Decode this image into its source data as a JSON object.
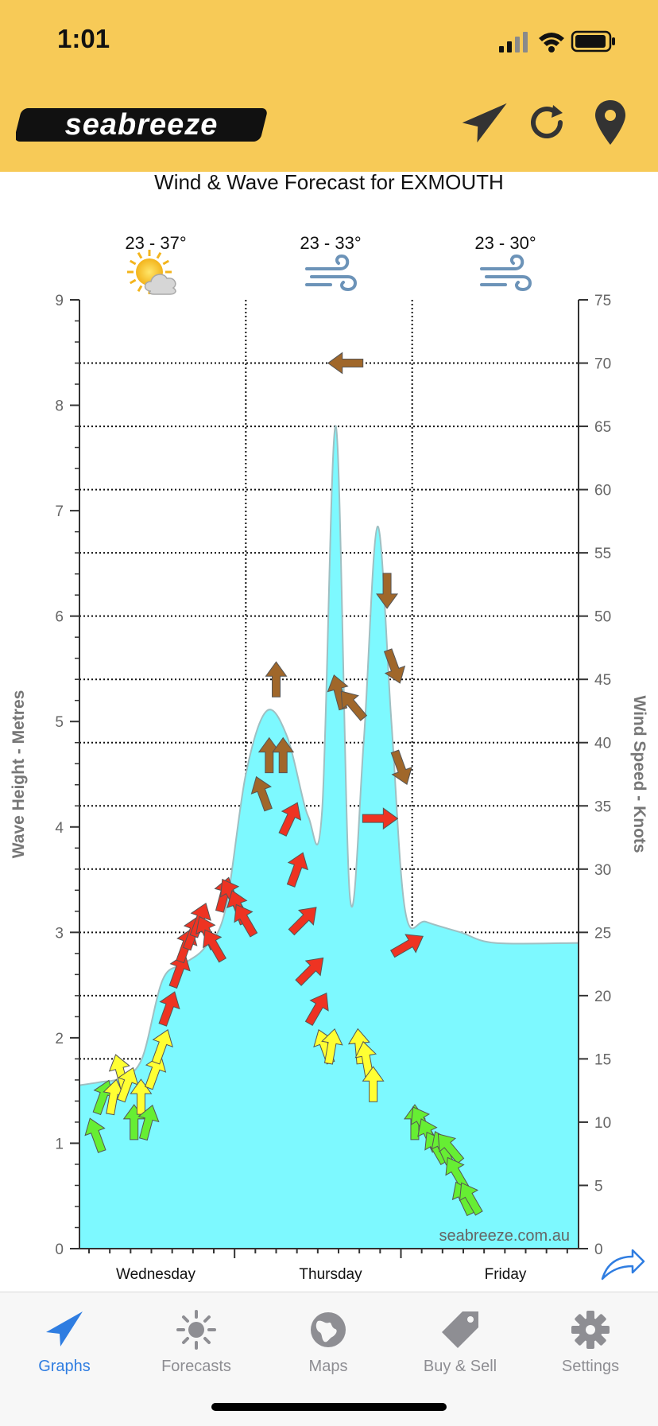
{
  "status_bar": {
    "time": "1:01"
  },
  "header": {
    "logo_text": "seabreeze",
    "background": "#F7CA57"
  },
  "title": "Wind & Wave Forecast for EXMOUTH",
  "watermark": "seabreeze.com.au",
  "days": [
    {
      "name": "Wednesday",
      "temp": "23 - 37°",
      "weather_icon": "sun-cloud-icon"
    },
    {
      "name": "Thursday",
      "temp": "23 - 33°",
      "weather_icon": "wind-icon"
    },
    {
      "name": "Friday",
      "temp": "23 - 30°",
      "weather_icon": "wind-icon"
    }
  ],
  "chart_data": {
    "type": "area",
    "title": "Wind & Wave Forecast for EXMOUTH",
    "xlabel": "",
    "ylabel": "Wave Height - Metres",
    "y2label": "Wind Speed - Knots",
    "ylim": [
      0,
      9
    ],
    "y2lim": [
      0,
      75
    ],
    "left_ticks": [
      "0",
      "1",
      "2",
      "3",
      "4",
      "5",
      "6",
      "7",
      "8",
      "9"
    ],
    "right_ticks": [
      "0",
      "5",
      "10",
      "15",
      "20",
      "25",
      "30",
      "35",
      "40",
      "45",
      "50",
      "55",
      "60",
      "65",
      "70",
      "75"
    ],
    "grid": "dotted horizontal at wind-speed intervals of 5 knots",
    "x_range_hours": [
      0,
      72
    ],
    "series": [
      {
        "name": "Wave Height",
        "color": "#7DF9FF",
        "points": [
          [
            0,
            1.55
          ],
          [
            3,
            1.58
          ],
          [
            6,
            1.62
          ],
          [
            9,
            1.8
          ],
          [
            12,
            2.55
          ],
          [
            15,
            2.7
          ],
          [
            18,
            2.85
          ],
          [
            21,
            3.2
          ],
          [
            24,
            4.5
          ],
          [
            27,
            5.1
          ],
          [
            30,
            4.85
          ],
          [
            33,
            4.1
          ],
          [
            35,
            4.15
          ],
          [
            37,
            7.8
          ],
          [
            39,
            3.35
          ],
          [
            41,
            4.8
          ],
          [
            43,
            6.85
          ],
          [
            45,
            5.0
          ],
          [
            47,
            3.2
          ],
          [
            50,
            3.1
          ],
          [
            55,
            3.0
          ],
          [
            60,
            2.9
          ],
          [
            72,
            2.9
          ]
        ]
      }
    ],
    "wind_arrows": [
      {
        "t": 1.0,
        "knots": 9,
        "dir": 340,
        "color": "#66EE33"
      },
      {
        "t": 2.0,
        "knots": 12,
        "dir": 20,
        "color": "#66EE33"
      },
      {
        "t": 3.5,
        "knots": 12,
        "dir": 10,
        "color": "#FFFF33"
      },
      {
        "t": 4.5,
        "knots": 14,
        "dir": 345,
        "color": "#FFFF33"
      },
      {
        "t": 5.5,
        "knots": 13,
        "dir": 20,
        "color": "#FFFF33"
      },
      {
        "t": 6.5,
        "knots": 10,
        "dir": 0,
        "color": "#66EE33"
      },
      {
        "t": 7.5,
        "knots": 12,
        "dir": 0,
        "color": "#FFFF33"
      },
      {
        "t": 8.5,
        "knots": 10,
        "dir": 15,
        "color": "#66EE33"
      },
      {
        "t": 9.5,
        "knots": 14,
        "dir": 20,
        "color": "#FFFF33"
      },
      {
        "t": 10.5,
        "knots": 16,
        "dir": 20,
        "color": "#FFFF33"
      },
      {
        "t": 11.5,
        "knots": 19,
        "dir": 20,
        "color": "#EE3322"
      },
      {
        "t": 13,
        "knots": 22,
        "dir": 20,
        "color": "#EE3322"
      },
      {
        "t": 14,
        "knots": 24,
        "dir": 20,
        "color": "#EE3322"
      },
      {
        "t": 15,
        "knots": 25,
        "dir": 20,
        "color": "#EE3322"
      },
      {
        "t": 16,
        "knots": 26,
        "dir": 20,
        "color": "#EE3322"
      },
      {
        "t": 17,
        "knots": 25,
        "dir": 335,
        "color": "#EE3322"
      },
      {
        "t": 18,
        "knots": 24,
        "dir": 330,
        "color": "#EE3322"
      },
      {
        "t": 19.5,
        "knots": 28,
        "dir": 15,
        "color": "#EE3322"
      },
      {
        "t": 20.5,
        "knots": 28,
        "dir": 330,
        "color": "#EE3322"
      },
      {
        "t": 21.5,
        "knots": 27,
        "dir": 340,
        "color": "#EE3322"
      },
      {
        "t": 22.5,
        "knots": 26,
        "dir": 330,
        "color": "#EE3322"
      },
      {
        "t": 25,
        "knots": 36,
        "dir": 340,
        "color": "#A0672A"
      },
      {
        "t": 26,
        "knots": 39,
        "dir": 0,
        "color": "#A0672A"
      },
      {
        "t": 27,
        "knots": 45,
        "dir": 0,
        "color": "#A0672A"
      },
      {
        "t": 28,
        "knots": 39,
        "dir": 0,
        "color": "#A0672A"
      },
      {
        "t": 29,
        "knots": 34,
        "dir": 25,
        "color": "#EE3322"
      },
      {
        "t": 30,
        "knots": 30,
        "dir": 20,
        "color": "#EE3322"
      },
      {
        "t": 31,
        "knots": 26,
        "dir": 45,
        "color": "#EE3322"
      },
      {
        "t": 32,
        "knots": 22,
        "dir": 45,
        "color": "#EE3322"
      },
      {
        "t": 33,
        "knots": 19,
        "dir": 30,
        "color": "#EE3322"
      },
      {
        "t": 34,
        "knots": 16,
        "dir": 340,
        "color": "#FFFF33"
      },
      {
        "t": 35,
        "knots": 16,
        "dir": 10,
        "color": "#FFFF33"
      },
      {
        "t": 36,
        "knots": 44,
        "dir": 345,
        "color": "#A0672A"
      },
      {
        "t": 37,
        "knots": 70,
        "dir": 270,
        "color": "#A0672A"
      },
      {
        "t": 38,
        "knots": 43,
        "dir": 320,
        "color": "#A0672A"
      },
      {
        "t": 39,
        "knots": 16,
        "dir": 355,
        "color": "#FFFF33"
      },
      {
        "t": 40,
        "knots": 15,
        "dir": 350,
        "color": "#FFFF33"
      },
      {
        "t": 41,
        "knots": 13,
        "dir": 0,
        "color": "#FFFF33"
      },
      {
        "t": 42,
        "knots": 34,
        "dir": 90,
        "color": "#EE3322"
      },
      {
        "t": 43,
        "knots": 52,
        "dir": 180,
        "color": "#A0672A"
      },
      {
        "t": 44,
        "knots": 46,
        "dir": 160,
        "color": "#A0672A"
      },
      {
        "t": 45,
        "knots": 38,
        "dir": 160,
        "color": "#A0672A"
      },
      {
        "t": 46,
        "knots": 24,
        "dir": 60,
        "color": "#EE3322"
      },
      {
        "t": 47,
        "knots": 10,
        "dir": 0,
        "color": "#66EE33"
      },
      {
        "t": 48,
        "knots": 10,
        "dir": 330,
        "color": "#66EE33"
      },
      {
        "t": 49,
        "knots": 9,
        "dir": 335,
        "color": "#66EE33"
      },
      {
        "t": 50,
        "knots": 8,
        "dir": 330,
        "color": "#66EE33"
      },
      {
        "t": 51,
        "knots": 8,
        "dir": 335,
        "color": "#66EE33"
      },
      {
        "t": 52,
        "knots": 8,
        "dir": 320,
        "color": "#66EE33"
      },
      {
        "t": 53,
        "knots": 6,
        "dir": 330,
        "color": "#66EE33"
      },
      {
        "t": 54,
        "knots": 4,
        "dir": 335,
        "color": "#66EE33"
      },
      {
        "t": 55,
        "knots": 4,
        "dir": 330,
        "color": "#66EE33"
      }
    ]
  },
  "tabs": [
    {
      "label": "Graphs",
      "icon": "arrow-icon",
      "active": true
    },
    {
      "label": "Forecasts",
      "icon": "sun-icon",
      "active": false
    },
    {
      "label": "Maps",
      "icon": "globe-icon",
      "active": false
    },
    {
      "label": "Buy & Sell",
      "icon": "tag-icon",
      "active": false
    },
    {
      "label": "Settings",
      "icon": "gear-icon",
      "active": false
    }
  ],
  "colors": {
    "accent": "#2F7DE1",
    "wave_fill": "#7DF9FF",
    "header": "#F7CA57"
  }
}
